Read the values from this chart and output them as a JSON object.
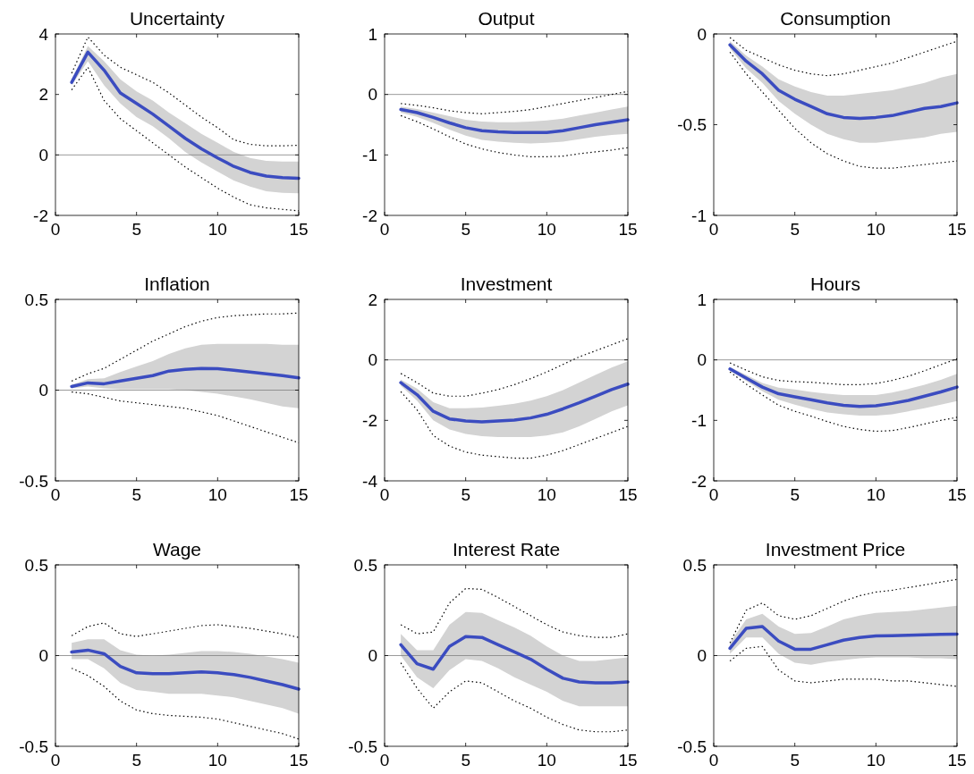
{
  "chart_data": [
    {
      "type": "line",
      "title": "Uncertainty",
      "x": [
        1,
        2,
        3,
        4,
        5,
        6,
        7,
        8,
        9,
        10,
        11,
        12,
        13,
        14,
        15
      ],
      "xlim": [
        0,
        15
      ],
      "xticks": [
        0,
        5,
        10,
        15
      ],
      "ylim": [
        -2,
        4
      ],
      "yticks": [
        -2,
        0,
        2,
        4
      ],
      "ref_lines": [
        {
          "axis": "y",
          "value": 0,
          "color": "#808080"
        }
      ],
      "series": [
        {
          "color": "#3b4cc0",
          "values": [
            2.4,
            3.4,
            2.8,
            2.05,
            1.7,
            1.35,
            0.95,
            0.55,
            0.2,
            -0.1,
            -0.38,
            -0.58,
            -0.7,
            -0.75,
            -0.77
          ],
          "lower": [
            2.3,
            3.1,
            2.3,
            1.7,
            1.25,
            0.95,
            0.55,
            0.1,
            -0.25,
            -0.55,
            -0.85,
            -1.05,
            -1.2,
            -1.25,
            -1.27
          ],
          "upper": [
            2.5,
            3.6,
            3.1,
            2.5,
            2.1,
            1.8,
            1.4,
            1.05,
            0.7,
            0.4,
            0.1,
            -0.1,
            -0.2,
            -0.22,
            -0.22
          ]
        },
        {
          "color": "#000000",
          "line_style": "dotted",
          "values": [
            2.7,
            3.9,
            3.3,
            2.9,
            2.65,
            2.4,
            2.05,
            1.65,
            1.25,
            0.9,
            0.5,
            0.35,
            0.3,
            0.3,
            0.32
          ]
        },
        {
          "color": "#000000",
          "line_style": "dotted",
          "values": [
            2.15,
            2.9,
            1.8,
            1.2,
            0.8,
            0.4,
            0,
            -0.4,
            -0.75,
            -1.1,
            -1.4,
            -1.65,
            -1.75,
            -1.8,
            -1.85
          ]
        }
      ]
    },
    {
      "type": "line",
      "title": "Output",
      "x": [
        1,
        2,
        3,
        4,
        5,
        6,
        7,
        8,
        9,
        10,
        11,
        12,
        13,
        14,
        15
      ],
      "xlim": [
        0,
        15
      ],
      "xticks": [
        0,
        5,
        10,
        15
      ],
      "ylim": [
        -2,
        1
      ],
      "yticks": [
        -2,
        -1,
        0,
        1
      ],
      "ref_lines": [
        {
          "axis": "y",
          "value": 0,
          "color": "#808080"
        }
      ],
      "series": [
        {
          "color": "#3b4cc0",
          "values": [
            -0.25,
            -0.3,
            -0.38,
            -0.47,
            -0.55,
            -0.6,
            -0.62,
            -0.63,
            -0.63,
            -0.63,
            -0.6,
            -0.55,
            -0.5,
            -0.46,
            -0.42
          ],
          "lower": [
            -0.3,
            -0.37,
            -0.47,
            -0.58,
            -0.68,
            -0.75,
            -0.78,
            -0.8,
            -0.81,
            -0.8,
            -0.78,
            -0.74,
            -0.7,
            -0.67,
            -0.65
          ],
          "upper": [
            -0.2,
            -0.24,
            -0.3,
            -0.36,
            -0.42,
            -0.45,
            -0.46,
            -0.46,
            -0.45,
            -0.43,
            -0.4,
            -0.35,
            -0.3,
            -0.25,
            -0.2
          ]
        },
        {
          "color": "#000000",
          "line_style": "dotted",
          "values": [
            -0.15,
            -0.18,
            -0.22,
            -0.27,
            -0.3,
            -0.32,
            -0.3,
            -0.28,
            -0.25,
            -0.2,
            -0.15,
            -0.1,
            -0.05,
            0,
            0.05
          ]
        },
        {
          "color": "#000000",
          "line_style": "dotted",
          "values": [
            -0.35,
            -0.45,
            -0.57,
            -0.7,
            -0.82,
            -0.9,
            -0.96,
            -1.0,
            -1.03,
            -1.03,
            -1.02,
            -0.98,
            -0.95,
            -0.92,
            -0.88
          ]
        }
      ]
    },
    {
      "type": "line",
      "title": "Consumption",
      "x": [
        1,
        2,
        3,
        4,
        5,
        6,
        7,
        8,
        9,
        10,
        11,
        12,
        13,
        14,
        15
      ],
      "xlim": [
        0,
        15
      ],
      "xticks": [
        0,
        5,
        10,
        15
      ],
      "ylim": [
        -1,
        0
      ],
      "yticks": [
        -1,
        -0.5,
        0
      ],
      "series": [
        {
          "color": "#3b4cc0",
          "values": [
            -0.06,
            -0.15,
            -0.22,
            -0.31,
            -0.36,
            -0.4,
            -0.44,
            -0.46,
            -0.465,
            -0.46,
            -0.45,
            -0.43,
            -0.41,
            -0.4,
            -0.38
          ],
          "lower": [
            -0.08,
            -0.19,
            -0.27,
            -0.37,
            -0.44,
            -0.5,
            -0.55,
            -0.58,
            -0.6,
            -0.6,
            -0.59,
            -0.58,
            -0.57,
            -0.55,
            -0.54
          ],
          "upper": [
            -0.04,
            -0.12,
            -0.18,
            -0.25,
            -0.29,
            -0.32,
            -0.34,
            -0.34,
            -0.33,
            -0.32,
            -0.31,
            -0.29,
            -0.27,
            -0.24,
            -0.22
          ]
        },
        {
          "color": "#000000",
          "line_style": "dotted",
          "values": [
            -0.02,
            -0.09,
            -0.13,
            -0.17,
            -0.2,
            -0.22,
            -0.23,
            -0.22,
            -0.2,
            -0.18,
            -0.16,
            -0.13,
            -0.1,
            -0.07,
            -0.04
          ]
        },
        {
          "color": "#000000",
          "line_style": "dotted",
          "values": [
            -0.1,
            -0.22,
            -0.32,
            -0.42,
            -0.52,
            -0.6,
            -0.66,
            -0.7,
            -0.73,
            -0.74,
            -0.74,
            -0.73,
            -0.72,
            -0.71,
            -0.7
          ]
        }
      ]
    },
    {
      "type": "line",
      "title": "Inflation",
      "x": [
        1,
        2,
        3,
        4,
        5,
        6,
        7,
        8,
        9,
        10,
        11,
        12,
        13,
        14,
        15
      ],
      "xlim": [
        0,
        15
      ],
      "xticks": [
        0,
        5,
        10,
        15
      ],
      "ylim": [
        -0.5,
        0.5
      ],
      "yticks": [
        -0.5,
        0,
        0.5
      ],
      "ref_lines": [
        {
          "axis": "y",
          "value": 0,
          "color": "#808080"
        }
      ],
      "series": [
        {
          "color": "#3b4cc0",
          "values": [
            0.02,
            0.04,
            0.035,
            0.05,
            0.065,
            0.08,
            0.105,
            0.115,
            0.12,
            0.118,
            0.11,
            0.1,
            0.09,
            0.08,
            0.068
          ],
          "lower": [
            0.01,
            0.02,
            0.01,
            0.005,
            0.005,
            0.005,
            0.005,
            0.0,
            -0.01,
            -0.02,
            -0.035,
            -0.05,
            -0.07,
            -0.09,
            -0.1
          ],
          "upper": [
            0.03,
            0.06,
            0.065,
            0.1,
            0.13,
            0.16,
            0.2,
            0.23,
            0.25,
            0.255,
            0.255,
            0.255,
            0.255,
            0.25,
            0.25
          ]
        },
        {
          "color": "#000000",
          "line_style": "dotted",
          "values": [
            0.05,
            0.09,
            0.12,
            0.17,
            0.22,
            0.27,
            0.31,
            0.35,
            0.38,
            0.4,
            0.41,
            0.415,
            0.42,
            0.42,
            0.425
          ]
        },
        {
          "color": "#000000",
          "line_style": "dotted",
          "values": [
            -0.01,
            -0.02,
            -0.04,
            -0.06,
            -0.07,
            -0.08,
            -0.09,
            -0.1,
            -0.12,
            -0.14,
            -0.17,
            -0.2,
            -0.23,
            -0.26,
            -0.29
          ]
        }
      ]
    },
    {
      "type": "line",
      "title": "Investment",
      "x": [
        1,
        2,
        3,
        4,
        5,
        6,
        7,
        8,
        9,
        10,
        11,
        12,
        13,
        14,
        15
      ],
      "xlim": [
        0,
        15
      ],
      "xticks": [
        0,
        5,
        10,
        15
      ],
      "ylim": [
        -4,
        2
      ],
      "yticks": [
        -4,
        -2,
        0,
        2
      ],
      "ref_lines": [
        {
          "axis": "y",
          "value": 0,
          "color": "#808080"
        }
      ],
      "series": [
        {
          "color": "#3b4cc0",
          "values": [
            -0.75,
            -1.15,
            -1.7,
            -1.95,
            -2.02,
            -2.05,
            -2.02,
            -1.99,
            -1.92,
            -1.8,
            -1.62,
            -1.42,
            -1.2,
            -0.98,
            -0.8
          ],
          "lower": [
            -0.85,
            -1.35,
            -2.0,
            -2.3,
            -2.45,
            -2.52,
            -2.55,
            -2.55,
            -2.55,
            -2.5,
            -2.4,
            -2.2,
            -1.95,
            -1.7,
            -1.5
          ],
          "upper": [
            -0.65,
            -0.95,
            -1.4,
            -1.6,
            -1.6,
            -1.58,
            -1.52,
            -1.45,
            -1.35,
            -1.2,
            -1.0,
            -0.75,
            -0.5,
            -0.25,
            -0.05
          ]
        },
        {
          "color": "#000000",
          "line_style": "dotted",
          "values": [
            -0.45,
            -0.75,
            -1.1,
            -1.2,
            -1.2,
            -1.1,
            -0.98,
            -0.82,
            -0.62,
            -0.4,
            -0.15,
            0.1,
            0.3,
            0.5,
            0.7
          ]
        },
        {
          "color": "#000000",
          "line_style": "dotted",
          "values": [
            -1.05,
            -1.65,
            -2.5,
            -2.85,
            -3.05,
            -3.15,
            -3.2,
            -3.25,
            -3.25,
            -3.15,
            -3.0,
            -2.8,
            -2.6,
            -2.4,
            -2.2
          ]
        }
      ]
    },
    {
      "type": "line",
      "title": "Hours",
      "x": [
        1,
        2,
        3,
        4,
        5,
        6,
        7,
        8,
        9,
        10,
        11,
        12,
        13,
        14,
        15
      ],
      "xlim": [
        0,
        15
      ],
      "xticks": [
        0,
        5,
        10,
        15
      ],
      "ylim": [
        -2,
        1
      ],
      "yticks": [
        -2,
        -1,
        0,
        1
      ],
      "ref_lines": [
        {
          "axis": "y",
          "value": 0,
          "color": "#808080"
        }
      ],
      "series": [
        {
          "color": "#3b4cc0",
          "values": [
            -0.15,
            -0.3,
            -0.45,
            -0.56,
            -0.61,
            -0.66,
            -0.71,
            -0.75,
            -0.77,
            -0.76,
            -0.72,
            -0.67,
            -0.6,
            -0.53,
            -0.45
          ],
          "lower": [
            -0.18,
            -0.35,
            -0.52,
            -0.66,
            -0.74,
            -0.81,
            -0.87,
            -0.9,
            -0.92,
            -0.92,
            -0.9,
            -0.85,
            -0.8,
            -0.74,
            -0.68
          ],
          "upper": [
            -0.12,
            -0.25,
            -0.38,
            -0.46,
            -0.49,
            -0.53,
            -0.56,
            -0.58,
            -0.58,
            -0.58,
            -0.54,
            -0.48,
            -0.41,
            -0.33,
            -0.23
          ]
        },
        {
          "color": "#000000",
          "line_style": "dotted",
          "values": [
            -0.05,
            -0.17,
            -0.28,
            -0.34,
            -0.36,
            -0.37,
            -0.39,
            -0.41,
            -0.41,
            -0.39,
            -0.34,
            -0.27,
            -0.18,
            -0.08,
            0.02
          ]
        },
        {
          "color": "#000000",
          "line_style": "dotted",
          "values": [
            -0.2,
            -0.4,
            -0.58,
            -0.75,
            -0.85,
            -0.93,
            -1.02,
            -1.1,
            -1.15,
            -1.18,
            -1.17,
            -1.12,
            -1.06,
            -1.0,
            -0.95
          ]
        }
      ]
    },
    {
      "type": "line",
      "title": "Wage",
      "x": [
        1,
        2,
        3,
        4,
        5,
        6,
        7,
        8,
        9,
        10,
        11,
        12,
        13,
        14,
        15
      ],
      "xlim": [
        0,
        15
      ],
      "xticks": [
        0,
        5,
        10,
        15
      ],
      "ylim": [
        -0.5,
        0.5
      ],
      "yticks": [
        -0.5,
        0,
        0.5
      ],
      "ref_lines": [
        {
          "axis": "y",
          "value": 0,
          "color": "#808080"
        }
      ],
      "series": [
        {
          "color": "#3b4cc0",
          "values": [
            0.02,
            0.03,
            0.01,
            -0.06,
            -0.095,
            -0.1,
            -0.1,
            -0.095,
            -0.09,
            -0.095,
            -0.105,
            -0.12,
            -0.14,
            -0.16,
            -0.185
          ],
          "lower": [
            -0.02,
            -0.02,
            -0.07,
            -0.15,
            -0.19,
            -0.2,
            -0.21,
            -0.21,
            -0.21,
            -0.22,
            -0.23,
            -0.25,
            -0.27,
            -0.29,
            -0.32
          ],
          "upper": [
            0.07,
            0.09,
            0.09,
            0.03,
            0.005,
            0.0,
            0.005,
            0.015,
            0.025,
            0.025,
            0.02,
            0.01,
            -0.005,
            -0.02,
            -0.04
          ]
        },
        {
          "color": "#000000",
          "line_style": "dotted",
          "values": [
            0.11,
            0.16,
            0.18,
            0.12,
            0.105,
            0.12,
            0.135,
            0.15,
            0.165,
            0.17,
            0.16,
            0.15,
            0.135,
            0.12,
            0.1
          ]
        },
        {
          "color": "#000000",
          "line_style": "dotted",
          "values": [
            -0.07,
            -0.11,
            -0.17,
            -0.25,
            -0.3,
            -0.32,
            -0.33,
            -0.335,
            -0.34,
            -0.35,
            -0.37,
            -0.39,
            -0.41,
            -0.43,
            -0.46
          ]
        }
      ]
    },
    {
      "type": "line",
      "title": "Interest Rate",
      "x": [
        1,
        2,
        3,
        4,
        5,
        6,
        7,
        8,
        9,
        10,
        11,
        12,
        13,
        14,
        15
      ],
      "xlim": [
        0,
        15
      ],
      "xticks": [
        0,
        5,
        10,
        15
      ],
      "ylim": [
        -0.5,
        0.5
      ],
      "yticks": [
        -0.5,
        0,
        0.5
      ],
      "ref_lines": [
        {
          "axis": "y",
          "value": 0,
          "color": "#808080"
        }
      ],
      "series": [
        {
          "color": "#3b4cc0",
          "values": [
            0.06,
            -0.045,
            -0.075,
            0.05,
            0.105,
            0.1,
            0.06,
            0.02,
            -0.02,
            -0.075,
            -0.125,
            -0.145,
            -0.15,
            -0.15,
            -0.145
          ],
          "lower": [
            0.0,
            -0.12,
            -0.18,
            -0.08,
            -0.02,
            -0.03,
            -0.07,
            -0.12,
            -0.16,
            -0.2,
            -0.25,
            -0.28,
            -0.28,
            -0.28,
            -0.28
          ],
          "upper": [
            0.12,
            0.03,
            0.03,
            0.17,
            0.24,
            0.235,
            0.195,
            0.155,
            0.11,
            0.05,
            0.0,
            -0.03,
            -0.03,
            -0.02,
            -0.01
          ]
        },
        {
          "color": "#000000",
          "line_style": "dotted",
          "values": [
            0.17,
            0.12,
            0.13,
            0.29,
            0.37,
            0.365,
            0.32,
            0.27,
            0.22,
            0.17,
            0.13,
            0.11,
            0.1,
            0.1,
            0.12
          ]
        },
        {
          "color": "#000000",
          "line_style": "dotted",
          "values": [
            -0.04,
            -0.18,
            -0.29,
            -0.2,
            -0.14,
            -0.15,
            -0.2,
            -0.25,
            -0.29,
            -0.34,
            -0.38,
            -0.41,
            -0.42,
            -0.42,
            -0.41
          ]
        }
      ]
    },
    {
      "type": "line",
      "title": "Investment Price",
      "x": [
        1,
        2,
        3,
        4,
        5,
        6,
        7,
        8,
        9,
        10,
        11,
        12,
        13,
        14,
        15
      ],
      "xlim": [
        0,
        15
      ],
      "xticks": [
        0,
        5,
        10,
        15
      ],
      "ylim": [
        -0.5,
        0.5
      ],
      "yticks": [
        -0.5,
        0,
        0.5
      ],
      "ref_lines": [
        {
          "axis": "y",
          "value": 0,
          "color": "#808080"
        }
      ],
      "series": [
        {
          "color": "#3b4cc0",
          "values": [
            0.04,
            0.15,
            0.16,
            0.08,
            0.035,
            0.035,
            0.06,
            0.085,
            0.1,
            0.108,
            0.11,
            0.112,
            0.115,
            0.117,
            0.118
          ],
          "lower": [
            0.01,
            0.1,
            0.1,
            0.01,
            -0.04,
            -0.05,
            -0.035,
            -0.025,
            -0.015,
            -0.01,
            -0.01,
            -0.01,
            -0.015,
            -0.015,
            -0.02
          ],
          "upper": [
            0.07,
            0.2,
            0.23,
            0.16,
            0.12,
            0.125,
            0.16,
            0.2,
            0.22,
            0.235,
            0.24,
            0.245,
            0.255,
            0.265,
            0.275
          ]
        },
        {
          "color": "#000000",
          "line_style": "dotted",
          "values": [
            0.07,
            0.25,
            0.29,
            0.22,
            0.2,
            0.22,
            0.26,
            0.3,
            0.33,
            0.35,
            0.36,
            0.375,
            0.39,
            0.405,
            0.42
          ]
        },
        {
          "color": "#000000",
          "line_style": "dotted",
          "values": [
            -0.03,
            0.04,
            0.05,
            -0.08,
            -0.14,
            -0.15,
            -0.14,
            -0.13,
            -0.13,
            -0.13,
            -0.14,
            -0.14,
            -0.15,
            -0.16,
            -0.17
          ]
        }
      ]
    }
  ]
}
